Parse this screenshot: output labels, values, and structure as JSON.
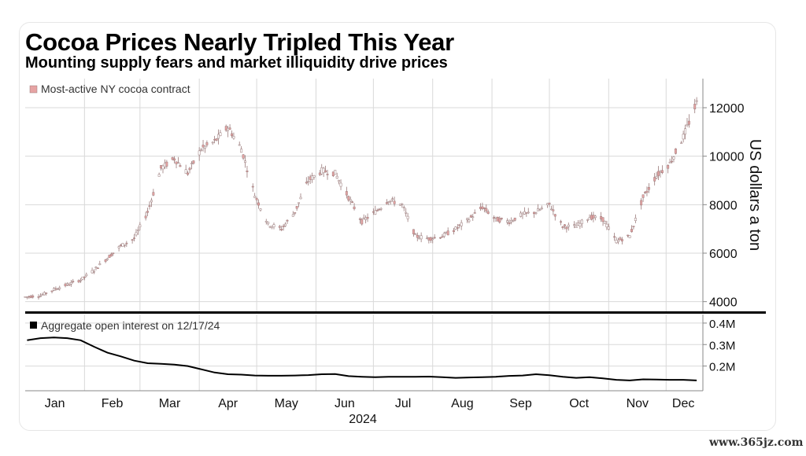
{
  "title": "Cocoa Prices Nearly Tripled This Year",
  "subtitle": "Mounting supply fears and market illiquidity drive prices",
  "watermark": "www.365jz.com",
  "colors": {
    "price": "#e6a3a3",
    "price_dark": "#9a7a7a",
    "open_interest": "#000000",
    "grid": "#d9d9d9",
    "divider": "#000000"
  },
  "chart_data": [
    {
      "type": "line",
      "subtype": "candlestick",
      "legend": "Most-active NY cocoa contract",
      "legend_position": "top-left",
      "ylabel": "US dollars a ton",
      "ylim": [
        3600,
        13200
      ],
      "yticks": [
        4000,
        6000,
        8000,
        10000,
        12000
      ],
      "ytick_labels": [
        "4000",
        "6000",
        "8000",
        "10000",
        "12000"
      ],
      "grid": true,
      "x": [
        "2024-01-02",
        "2024-01-09",
        "2024-01-16",
        "2024-01-23",
        "2024-01-30",
        "2024-02-06",
        "2024-02-13",
        "2024-02-20",
        "2024-02-27",
        "2024-03-05",
        "2024-03-12",
        "2024-03-19",
        "2024-03-26",
        "2024-04-02",
        "2024-04-09",
        "2024-04-16",
        "2024-04-23",
        "2024-04-30",
        "2024-05-07",
        "2024-05-14",
        "2024-05-21",
        "2024-05-28",
        "2024-06-04",
        "2024-06-11",
        "2024-06-18",
        "2024-06-25",
        "2024-07-02",
        "2024-07-09",
        "2024-07-16",
        "2024-07-23",
        "2024-07-30",
        "2024-08-06",
        "2024-08-13",
        "2024-08-20",
        "2024-08-27",
        "2024-09-03",
        "2024-09-10",
        "2024-09-17",
        "2024-09-24",
        "2024-10-01",
        "2024-10-08",
        "2024-10-15",
        "2024-10-22",
        "2024-10-29",
        "2024-11-05",
        "2024-11-12",
        "2024-11-19",
        "2024-11-26",
        "2024-12-03",
        "2024-12-10",
        "2024-12-17"
      ],
      "values": [
        4200,
        4250,
        4500,
        4700,
        4900,
        5300,
        5800,
        6300,
        6600,
        7700,
        9500,
        9900,
        9300,
        10300,
        10600,
        11200,
        10300,
        8400,
        7200,
        7000,
        7700,
        9000,
        9400,
        9300,
        8300,
        7300,
        7700,
        8200,
        8000,
        6700,
        6600,
        6700,
        7000,
        7400,
        7900,
        7400,
        7300,
        7600,
        7700,
        8000,
        7100,
        7100,
        7500,
        7400,
        6500,
        6700,
        8300,
        9200,
        9700,
        10800,
        12200
      ]
    },
    {
      "type": "area",
      "legend": "Aggregate open interest on 12/17/24",
      "legend_position": "top-left",
      "ylim": [
        85000,
        440000
      ],
      "yticks": [
        200000,
        300000,
        400000
      ],
      "ytick_labels": [
        "0.2M",
        "0.3M",
        "0.4M"
      ],
      "grid": true,
      "x": [
        "2024-01-02",
        "2024-01-09",
        "2024-01-16",
        "2024-01-23",
        "2024-01-30",
        "2024-02-06",
        "2024-02-13",
        "2024-02-20",
        "2024-02-27",
        "2024-03-05",
        "2024-03-12",
        "2024-03-19",
        "2024-03-26",
        "2024-04-02",
        "2024-04-09",
        "2024-04-16",
        "2024-04-23",
        "2024-04-30",
        "2024-05-07",
        "2024-05-14",
        "2024-05-21",
        "2024-05-28",
        "2024-06-04",
        "2024-06-11",
        "2024-06-18",
        "2024-06-25",
        "2024-07-02",
        "2024-07-09",
        "2024-07-16",
        "2024-07-23",
        "2024-07-30",
        "2024-08-06",
        "2024-08-13",
        "2024-08-20",
        "2024-08-27",
        "2024-09-03",
        "2024-09-10",
        "2024-09-17",
        "2024-09-24",
        "2024-10-01",
        "2024-10-08",
        "2024-10-15",
        "2024-10-22",
        "2024-10-29",
        "2024-11-05",
        "2024-11-12",
        "2024-11-19",
        "2024-11-26",
        "2024-12-03",
        "2024-12-10",
        "2024-12-17"
      ],
      "values": [
        320000,
        330000,
        333000,
        330000,
        320000,
        290000,
        262000,
        245000,
        225000,
        213000,
        210000,
        207000,
        200000,
        185000,
        170000,
        162000,
        160000,
        156000,
        155000,
        155000,
        156000,
        158000,
        162000,
        163000,
        153000,
        150000,
        148000,
        150000,
        150000,
        150000,
        151000,
        148000,
        145000,
        147000,
        148000,
        150000,
        154000,
        156000,
        162000,
        157000,
        150000,
        145000,
        148000,
        143000,
        136000,
        133000,
        138000,
        137000,
        136000,
        136000,
        133000
      ]
    }
  ],
  "x_axis": {
    "month_labels": [
      "Jan",
      "Feb",
      "Mar",
      "Apr",
      "May",
      "Jun",
      "Jul",
      "Aug",
      "Sep",
      "Oct",
      "Nov",
      "Dec"
    ],
    "year_label": "2024"
  }
}
